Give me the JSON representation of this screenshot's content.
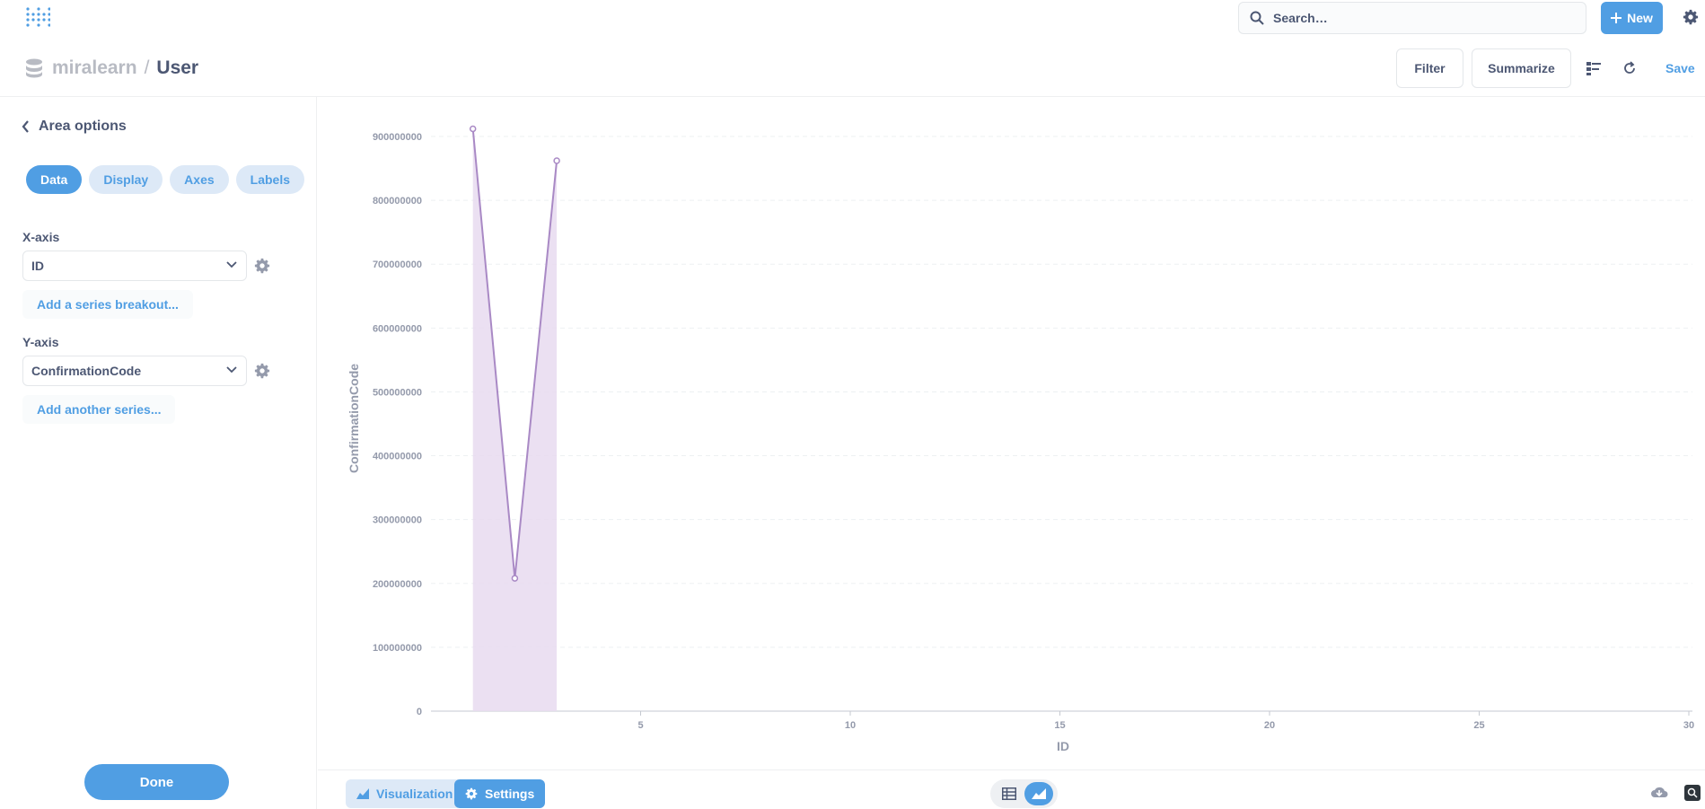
{
  "topbar": {
    "search_placeholder": "Search…",
    "new_label": "New"
  },
  "header": {
    "database": "miralearn",
    "separator": "/",
    "table": "User",
    "filter_label": "Filter",
    "summarize_label": "Summarize",
    "save_label": "Save"
  },
  "sidebar": {
    "title": "Area options",
    "tabs": [
      {
        "label": "Data",
        "active": true
      },
      {
        "label": "Display",
        "active": false
      },
      {
        "label": "Axes",
        "active": false
      },
      {
        "label": "Labels",
        "active": false
      }
    ],
    "x_axis_label": "X-axis",
    "x_axis_value": "ID",
    "add_breakout_label": "Add a series breakout...",
    "y_axis_label": "Y-axis",
    "y_axis_value": "ConfirmationCode",
    "add_series_label": "Add another series...",
    "done_label": "Done"
  },
  "footer": {
    "visualization_label": "Visualization",
    "settings_label": "Settings"
  },
  "colors": {
    "accent": "#509ee3",
    "series": "#a989c5",
    "series_fill": "#e8dbf0"
  },
  "chart_data": {
    "type": "area",
    "x": [
      1,
      2,
      3
    ],
    "series": [
      {
        "values": [
          912000000,
          208000000,
          862000000
        ]
      }
    ],
    "xlabel": "ID",
    "ylabel": "ConfirmationCode",
    "xlim": [
      0,
      30
    ],
    "ylim": [
      0,
      900000000
    ],
    "x_ticks": [
      "5",
      "10",
      "15",
      "20",
      "25",
      "30"
    ],
    "y_ticks": [
      "0",
      "100000000",
      "200000000",
      "300000000",
      "400000000",
      "500000000",
      "600000000",
      "700000000",
      "800000000",
      "900000000"
    ],
    "grid": true
  }
}
